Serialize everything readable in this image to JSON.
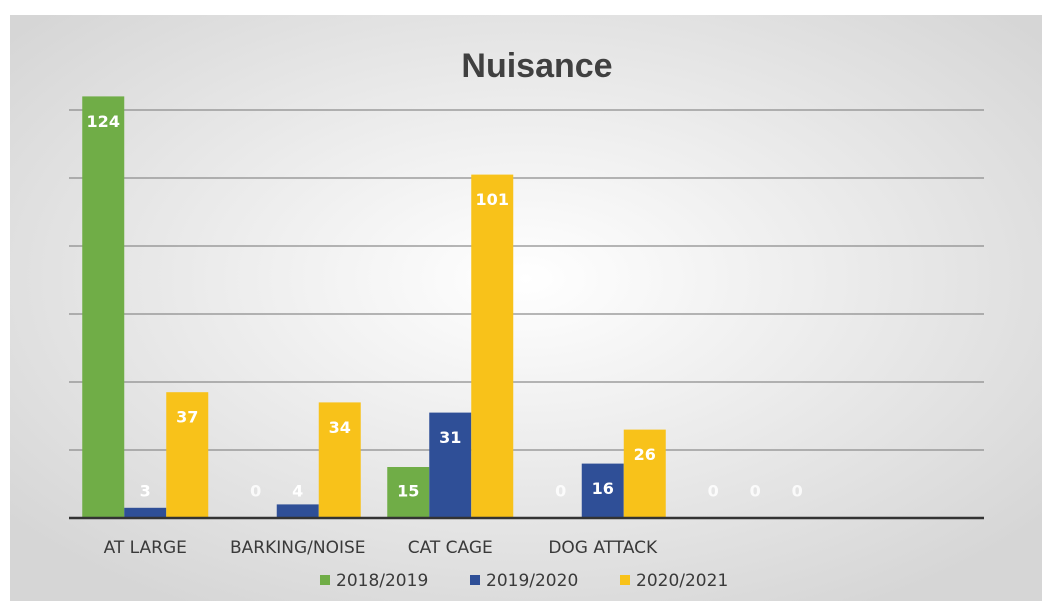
{
  "chart_data": {
    "type": "bar",
    "title": "Nuisance",
    "categories": [
      "AT LARGE",
      "BARKING/NOISE",
      "CAT CAGE",
      "DOG ATTACK",
      null,
      null
    ],
    "series": [
      {
        "name": "2018/2019",
        "color": "#70ad47",
        "values": [
          124,
          0,
          15,
          0,
          0,
          null
        ]
      },
      {
        "name": "2019/2020",
        "color": "#2f4f97",
        "values": [
          3,
          4,
          31,
          16,
          0,
          null
        ]
      },
      {
        "name": "2020/2021",
        "color": "#f8c21a",
        "values": [
          37,
          34,
          101,
          26,
          0,
          null
        ]
      }
    ],
    "ylim": [
      0,
      140
    ],
    "yticks": [
      0,
      20,
      40,
      60,
      80,
      100,
      120
    ],
    "grid": true,
    "legend": "bottom"
  }
}
